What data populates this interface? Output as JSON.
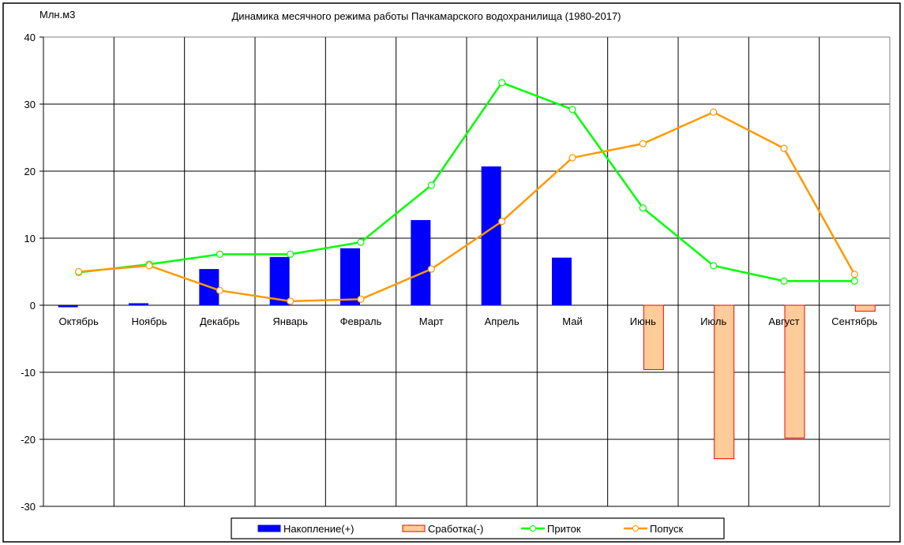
{
  "chart_data": {
    "type": "bar+line",
    "title": "Динамика месячного режима работы Пачкамарского водохранилища (1980-2017)",
    "ylabel": "Млн.м3",
    "ylim": [
      -30,
      40
    ],
    "yticks": [
      40,
      30,
      20,
      10,
      0,
      -10,
      -20,
      -30
    ],
    "grid": true,
    "legend_position": "bottom",
    "categories": [
      "Октябрь",
      "Ноябрь",
      "Декабрь",
      "Январь",
      "Февраль",
      "Март",
      "Апрель",
      "Май",
      "Июнь",
      "Июль",
      "Август",
      "Сентябрь"
    ],
    "series": [
      {
        "name": "Накопление(+)",
        "kind": "bar",
        "color": "#0000ff",
        "values": [
          -0.3,
          0.3,
          5.4,
          7.2,
          8.5,
          12.7,
          20.7,
          7.1,
          0,
          0,
          0,
          0
        ]
      },
      {
        "name": "Сработка(-)",
        "kind": "bar",
        "color": "#ffcc99",
        "stroke": "#ff0000",
        "values": [
          0,
          0,
          0,
          0,
          0,
          0,
          0,
          0,
          -9.6,
          -22.9,
          -19.8,
          -0.9
        ]
      },
      {
        "name": "Приток",
        "kind": "line",
        "color": "#00ff00",
        "values": [
          4.9,
          6.1,
          7.6,
          7.6,
          9.4,
          17.9,
          33.2,
          29.2,
          14.5,
          5.9,
          3.6,
          3.6
        ]
      },
      {
        "name": "Попуск",
        "kind": "line",
        "color": "#ff9900",
        "values": [
          5.0,
          5.9,
          2.2,
          0.6,
          0.9,
          5.4,
          12.5,
          22.0,
          24.1,
          28.8,
          23.4,
          4.6
        ]
      }
    ]
  }
}
